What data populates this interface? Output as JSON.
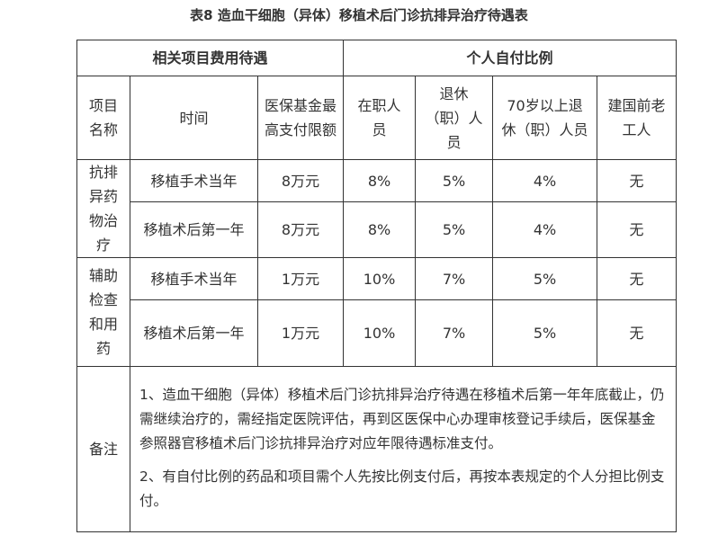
{
  "title": "表8  造血干细胞（异体）移植术后门诊抗排异治疗待遇表",
  "header": {
    "group_left": "相关项目费用待遇",
    "group_right": "个人自付比例",
    "col_item": "项目名称",
    "col_time": "时间",
    "col_max": "医保基金最高支付限额",
    "col_employed": "在职人员",
    "col_retired": "退休（职）人员",
    "col_retired70": "70岁以上退休（职）人员",
    "col_veteran": "建国前老工人"
  },
  "rows": [
    {
      "category": "抗排异药物治疗",
      "time": "移植手术当年",
      "max": "8万元",
      "employed": "8%",
      "retired": "5%",
      "retired70": "4%",
      "veteran": "无"
    },
    {
      "time": "移植术后第一年",
      "max": "8万元",
      "employed": "8%",
      "retired": "5%",
      "retired70": "4%",
      "veteran": "无"
    },
    {
      "category": "辅助检查和用药",
      "time": "移植手术当年",
      "max": "1万元",
      "employed": "10%",
      "retired": "7%",
      "retired70": "5%",
      "veteran": "无"
    },
    {
      "time": "移植术后第一年",
      "max": "1万元",
      "employed": "10%",
      "retired": "7%",
      "retired70": "5%",
      "veteran": "无"
    }
  ],
  "notes": {
    "label": "备注",
    "items": [
      "1、造血干细胞（异体）移植术后门诊抗排异治疗待遇在移植术后第一年年底截止，仍需继续治疗的，需经指定医院评估，再到区医保中心办理审核登记手续后，医保基金参照器官移植术后门诊抗排异治疗对应年限待遇标准支付。",
      "2、有自付比例的药品和项目需个人先按比例支付后，再按本表规定的个人分担比例支付。"
    ]
  }
}
